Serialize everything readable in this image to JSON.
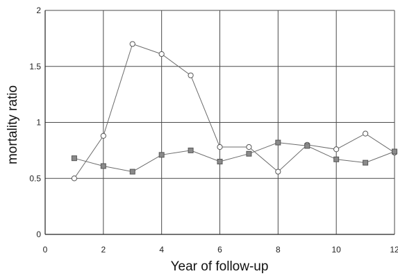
{
  "chart_data": {
    "type": "line",
    "title": "",
    "xlabel": "Year of follow-up",
    "ylabel": "mortality ratio",
    "xlim": [
      0,
      12
    ],
    "ylim": [
      0,
      2
    ],
    "x_ticks": [
      "0",
      "2",
      "4",
      "6",
      "8",
      "10",
      "12"
    ],
    "y_ticks": [
      "0",
      "0.5",
      "1",
      "1.5",
      "2"
    ],
    "grid": "on",
    "series": [
      {
        "marker": "circle",
        "color": "#6b6b6b",
        "x": [
          1,
          2,
          3,
          4,
          5,
          6,
          7,
          8,
          9,
          10,
          11,
          12
        ],
        "y": [
          0.5,
          0.88,
          1.7,
          1.61,
          1.42,
          0.78,
          0.78,
          0.56,
          0.8,
          0.76,
          0.9,
          0.73
        ]
      },
      {
        "marker": "square",
        "color": "#6b6b6b",
        "x": [
          1,
          2,
          3,
          4,
          5,
          6,
          7,
          8,
          9,
          10,
          11,
          12
        ],
        "y": [
          0.68,
          0.61,
          0.56,
          0.71,
          0.75,
          0.65,
          0.72,
          0.82,
          0.79,
          0.67,
          0.64,
          0.74
        ]
      }
    ]
  }
}
